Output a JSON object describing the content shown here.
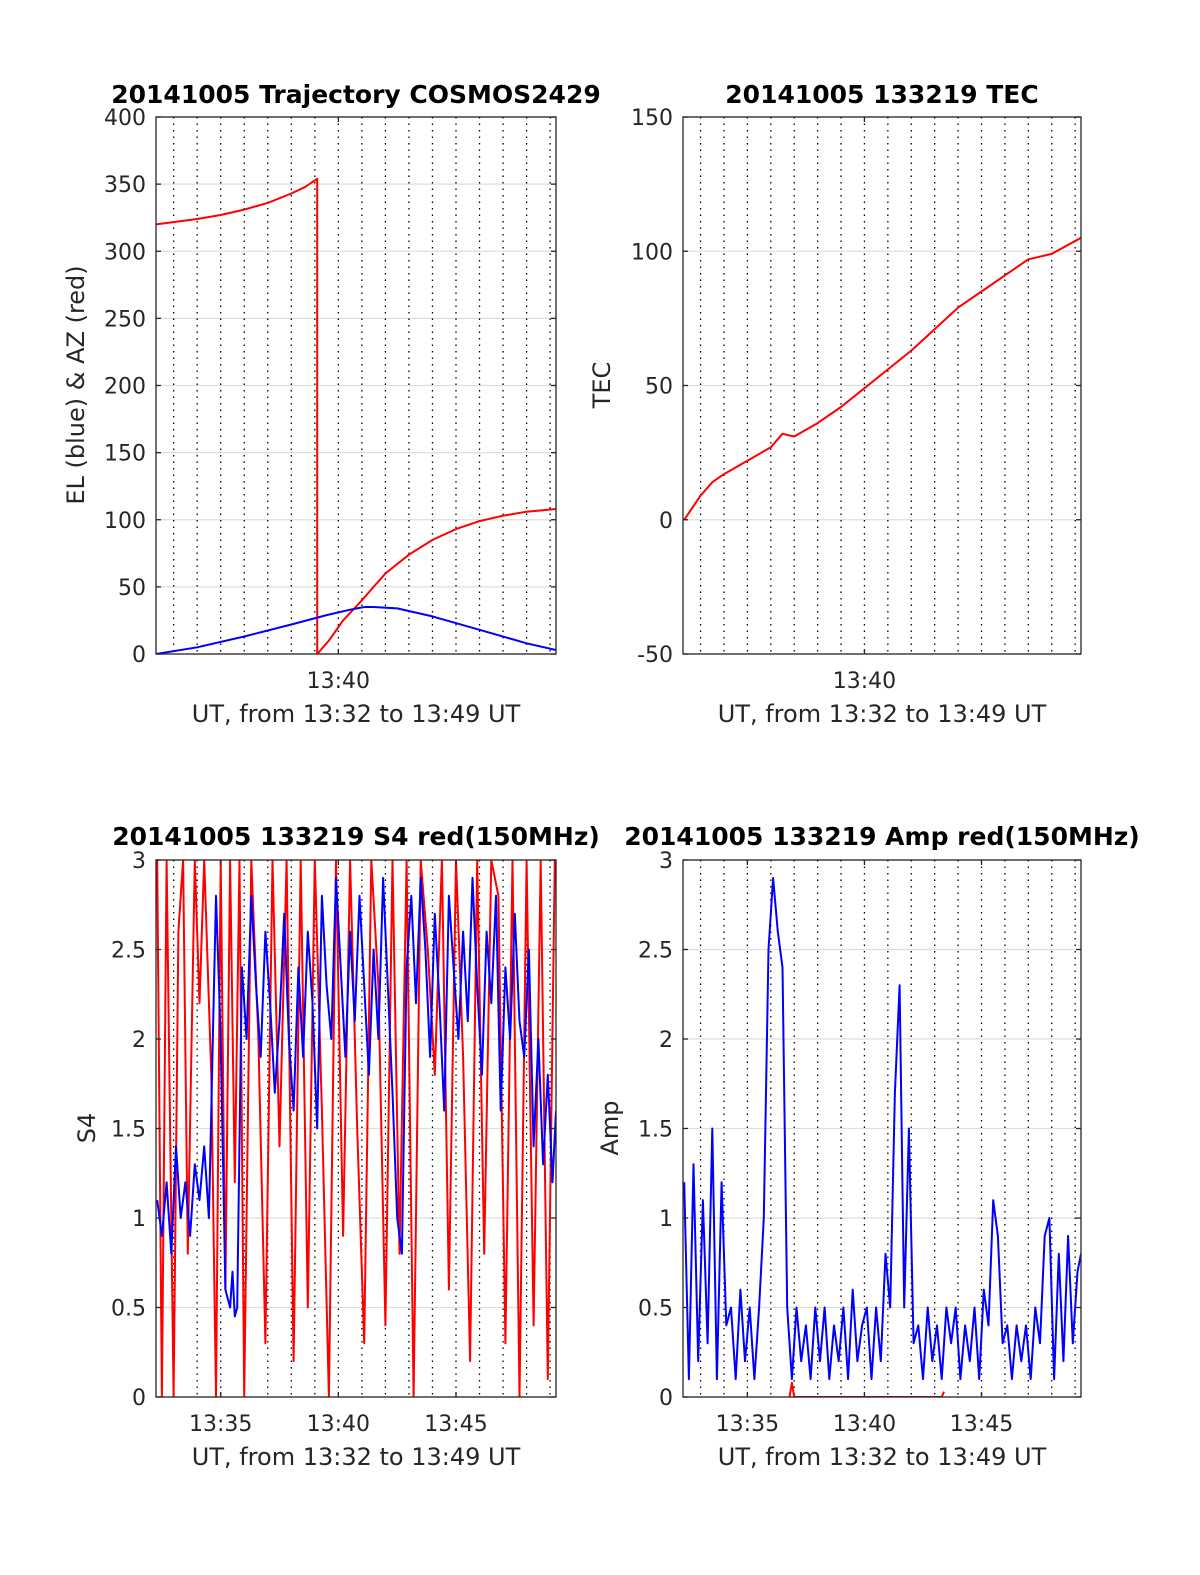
{
  "figure": {
    "xlabel_common": "UT, from 13:32 to 13:49 UT",
    "colors": {
      "red": "#ff0000",
      "blue": "#0000ff"
    }
  },
  "chart_data": [
    {
      "type": "line",
      "title": "20141005 Trajectory COSMOS2429",
      "ylabel": "EL (blue) & AZ (red)",
      "xlabel": "UT, from 13:32 to 13:49 UT",
      "xlim": [
        2.25,
        19.25
      ],
      "ylim": [
        0,
        400
      ],
      "xticks": [
        {
          "x": 10,
          "label": "13:40"
        }
      ],
      "yticks": [
        0,
        50,
        100,
        150,
        200,
        250,
        300,
        350,
        400
      ],
      "minor_xgrid": [
        3,
        4,
        5,
        6,
        7,
        8,
        9,
        10,
        11,
        12,
        13,
        14,
        15,
        16,
        17,
        18,
        19
      ],
      "grid": true,
      "series": [
        {
          "name": "AZ",
          "color": "#ff0000",
          "x": [
            2.25,
            4,
            5,
            6,
            7,
            8,
            8.6,
            9.1,
            9.1,
            9.6,
            10.2,
            11,
            11.5,
            12,
            13,
            14,
            15,
            16,
            17,
            18,
            19.25
          ],
          "y": [
            320,
            324,
            327,
            331,
            336,
            343,
            348,
            354,
            0,
            10,
            25,
            40,
            50,
            60,
            74,
            85,
            93,
            99,
            103,
            106,
            108
          ]
        },
        {
          "name": "EL",
          "color": "#0000ff",
          "x": [
            2.25,
            4,
            6,
            8,
            9.5,
            10.5,
            11.1,
            11.5,
            12.5,
            14,
            16,
            18,
            19.25
          ],
          "y": [
            0,
            5,
            13,
            22,
            29,
            33,
            35,
            35,
            34,
            28,
            18,
            8,
            3
          ]
        }
      ]
    },
    {
      "type": "line",
      "title": "20141005 133219 TEC",
      "ylabel": "TEC",
      "xlabel": "UT, from 13:32 to 13:49 UT",
      "xlim": [
        2.25,
        19.25
      ],
      "ylim": [
        -50,
        150
      ],
      "xticks": [
        {
          "x": 10,
          "label": "13:40"
        }
      ],
      "yticks": [
        -50,
        0,
        50,
        100,
        150
      ],
      "minor_xgrid": [
        3,
        4,
        5,
        6,
        7,
        8,
        9,
        10,
        11,
        12,
        13,
        14,
        15,
        16,
        17,
        18,
        19
      ],
      "grid": true,
      "series": [
        {
          "name": "TEC",
          "color": "#ff0000",
          "x": [
            2.3,
            3,
            3.5,
            4,
            5,
            6,
            6.5,
            7,
            8,
            9,
            10,
            11,
            12,
            13,
            14,
            15,
            16,
            17,
            18,
            19.25
          ],
          "y": [
            0,
            9,
            14,
            17,
            22,
            27,
            32,
            31,
            36,
            42,
            49,
            56,
            63,
            71,
            79,
            85,
            91,
            97,
            99,
            105
          ]
        }
      ]
    },
    {
      "type": "line",
      "title": "20141005 133219 S4 red(150MHz)",
      "ylabel": "S4",
      "xlabel": "UT, from 13:32 to 13:49 UT",
      "xlim": [
        2.25,
        19.25
      ],
      "ylim": [
        0,
        3
      ],
      "xticks": [
        {
          "x": 5,
          "label": "13:35"
        },
        {
          "x": 10,
          "label": "13:40"
        },
        {
          "x": 15,
          "label": "13:45"
        }
      ],
      "yticks": [
        0,
        0.5,
        1,
        1.5,
        2,
        2.5,
        3
      ],
      "minor_xgrid": [
        3,
        4,
        5,
        6,
        7,
        8,
        9,
        10,
        11,
        12,
        13,
        14,
        15,
        16,
        17,
        18,
        19
      ],
      "grid": true,
      "series": [
        {
          "name": "S4 red",
          "color": "#ff0000",
          "x": [
            2.3,
            2.5,
            2.7,
            3.0,
            3.2,
            3.4,
            3.6,
            3.9,
            4.1,
            4.3,
            4.6,
            4.8,
            5.0,
            5.2,
            5.4,
            5.6,
            5.8,
            6.0,
            6.3,
            6.6,
            6.9,
            7.2,
            7.5,
            7.8,
            8.1,
            8.4,
            8.7,
            9.0,
            9.3,
            9.6,
            9.9,
            10.2,
            10.5,
            10.8,
            11.1,
            11.4,
            11.7,
            12.0,
            12.3,
            12.6,
            12.9,
            13.2,
            13.5,
            13.8,
            14.1,
            14.4,
            14.7,
            15.0,
            15.3,
            15.6,
            15.9,
            16.2,
            16.5,
            16.8,
            17.1,
            17.4,
            17.7,
            18.0,
            18.3,
            18.6,
            18.9,
            19.2
          ],
          "y": [
            3,
            0,
            3,
            0,
            2.6,
            3,
            0.8,
            3,
            2.2,
            3,
            1.8,
            0,
            3,
            0.6,
            3,
            1.2,
            3,
            0,
            3,
            2.0,
            0.3,
            3,
            1.4,
            3,
            0.2,
            3,
            0.5,
            3,
            1.6,
            0,
            3,
            0.9,
            3,
            1.5,
            0.3,
            3,
            2.3,
            0.4,
            3,
            0.8,
            3,
            0,
            3,
            2.5,
            1.8,
            3,
            0.6,
            3,
            1.9,
            0.2,
            3,
            0.8,
            3,
            2.8,
            0.3,
            3,
            0,
            3,
            0.4,
            3,
            0.1,
            3
          ]
        },
        {
          "name": "S4 blue",
          "color": "#0000ff",
          "x": [
            2.3,
            2.5,
            2.7,
            2.9,
            3.1,
            3.3,
            3.5,
            3.7,
            3.9,
            4.1,
            4.3,
            4.5,
            4.6,
            4.7,
            4.8,
            4.9,
            5.0,
            5.2,
            5.4,
            5.5,
            5.6,
            5.7,
            5.9,
            6.1,
            6.3,
            6.5,
            6.7,
            6.9,
            7.1,
            7.3,
            7.5,
            7.7,
            7.9,
            8.1,
            8.3,
            8.5,
            8.7,
            8.9,
            9.1,
            9.3,
            9.5,
            9.7,
            9.9,
            10.1,
            10.3,
            10.5,
            10.7,
            10.9,
            11.1,
            11.3,
            11.5,
            11.7,
            11.9,
            12.1,
            12.3,
            12.5,
            12.7,
            12.9,
            13.1,
            13.3,
            13.5,
            13.7,
            13.9,
            14.1,
            14.3,
            14.5,
            14.7,
            14.9,
            15.1,
            15.3,
            15.5,
            15.7,
            15.9,
            16.1,
            16.3,
            16.5,
            16.7,
            16.9,
            17.1,
            17.3,
            17.5,
            17.7,
            17.9,
            18.1,
            18.3,
            18.5,
            18.7,
            18.9,
            19.1,
            19.25
          ],
          "y": [
            1.1,
            0.9,
            1.2,
            0.8,
            1.4,
            1.0,
            1.2,
            0.9,
            1.3,
            1.1,
            1.4,
            1.0,
            1.6,
            2.2,
            2.8,
            2.4,
            2.0,
            0.6,
            0.5,
            0.7,
            0.45,
            0.5,
            2.4,
            2.0,
            2.8,
            2.3,
            1.9,
            2.6,
            2.2,
            1.7,
            2.1,
            2.7,
            2.0,
            1.6,
            2.4,
            1.9,
            2.6,
            2.2,
            1.5,
            2.8,
            2.3,
            2.0,
            2.9,
            2.4,
            1.9,
            2.6,
            2.1,
            2.8,
            2.3,
            1.8,
            2.5,
            2.0,
            2.9,
            2.3,
            1.7,
            1.0,
            0.8,
            2.4,
            2.8,
            2.2,
            2.9,
            2.5,
            1.9,
            2.7,
            2.2,
            1.6,
            2.8,
            2.4,
            2.0,
            2.6,
            2.1,
            2.9,
            2.3,
            1.8,
            2.6,
            2.2,
            2.8,
            1.6,
            2.4,
            2.0,
            2.7,
            2.1,
            1.9,
            2.5,
            1.4,
            2.0,
            1.3,
            1.8,
            1.2,
            1.6
          ]
        }
      ]
    },
    {
      "type": "line",
      "title": "20141005 133219 Amp red(150MHz)",
      "ylabel": "Amp",
      "xlabel": "UT, from 13:32 to 13:49 UT",
      "xlim": [
        2.25,
        19.25
      ],
      "ylim": [
        0,
        3
      ],
      "xticks": [
        {
          "x": 5,
          "label": "13:35"
        },
        {
          "x": 10,
          "label": "13:40"
        },
        {
          "x": 15,
          "label": "13:45"
        }
      ],
      "yticks": [
        0,
        0.5,
        1,
        1.5,
        2,
        2.5,
        3
      ],
      "minor_xgrid": [
        3,
        4,
        5,
        6,
        7,
        8,
        9,
        10,
        11,
        12,
        13,
        14,
        15,
        16,
        17,
        18,
        19
      ],
      "grid": true,
      "series": [
        {
          "name": "Amp blue",
          "color": "#0000ff",
          "x": [
            2.3,
            2.5,
            2.7,
            2.9,
            3.1,
            3.3,
            3.5,
            3.7,
            3.9,
            4.1,
            4.3,
            4.5,
            4.7,
            4.9,
            5.1,
            5.3,
            5.5,
            5.7,
            5.9,
            6.1,
            6.3,
            6.5,
            6.7,
            6.9,
            7.1,
            7.3,
            7.5,
            7.7,
            7.9,
            8.1,
            8.3,
            8.5,
            8.7,
            8.9,
            9.1,
            9.3,
            9.5,
            9.7,
            9.9,
            10.1,
            10.3,
            10.5,
            10.7,
            10.9,
            11.1,
            11.3,
            11.5,
            11.7,
            11.9,
            12.1,
            12.3,
            12.5,
            12.7,
            12.9,
            13.1,
            13.3,
            13.5,
            13.7,
            13.9,
            14.1,
            14.3,
            14.5,
            14.7,
            14.9,
            15.1,
            15.3,
            15.5,
            15.7,
            15.9,
            16.1,
            16.3,
            16.5,
            16.7,
            16.9,
            17.1,
            17.3,
            17.5,
            17.7,
            17.9,
            18.1,
            18.3,
            18.5,
            18.7,
            18.9,
            19.1,
            19.25
          ],
          "y": [
            1.2,
            0.1,
            1.3,
            0.2,
            1.1,
            0.3,
            1.5,
            0.1,
            1.2,
            0.4,
            0.5,
            0.1,
            0.6,
            0.2,
            0.5,
            0.1,
            0.5,
            1.0,
            2.5,
            2.9,
            2.6,
            2.4,
            0.5,
            0.1,
            0.5,
            0.2,
            0.4,
            0.1,
            0.5,
            0.2,
            0.5,
            0.1,
            0.4,
            0.2,
            0.5,
            0.1,
            0.6,
            0.2,
            0.4,
            0.5,
            0.1,
            0.5,
            0.2,
            0.8,
            0.5,
            1.7,
            2.3,
            0.5,
            1.5,
            0.3,
            0.4,
            0.1,
            0.5,
            0.2,
            0.4,
            0.1,
            0.5,
            0.3,
            0.5,
            0.1,
            0.4,
            0.2,
            0.5,
            0.1,
            0.6,
            0.4,
            1.1,
            0.9,
            0.3,
            0.4,
            0.1,
            0.4,
            0.2,
            0.4,
            0.1,
            0.5,
            0.3,
            0.9,
            1.0,
            0.1,
            0.8,
            0.2,
            0.9,
            0.3,
            0.7,
            0.8
          ]
        },
        {
          "name": "Amp red",
          "color": "#ff0000",
          "x": [
            6.8,
            6.9,
            7.0,
            13.3,
            13.4
          ],
          "y": [
            0,
            0.08,
            0,
            0,
            0.03
          ]
        }
      ]
    }
  ]
}
